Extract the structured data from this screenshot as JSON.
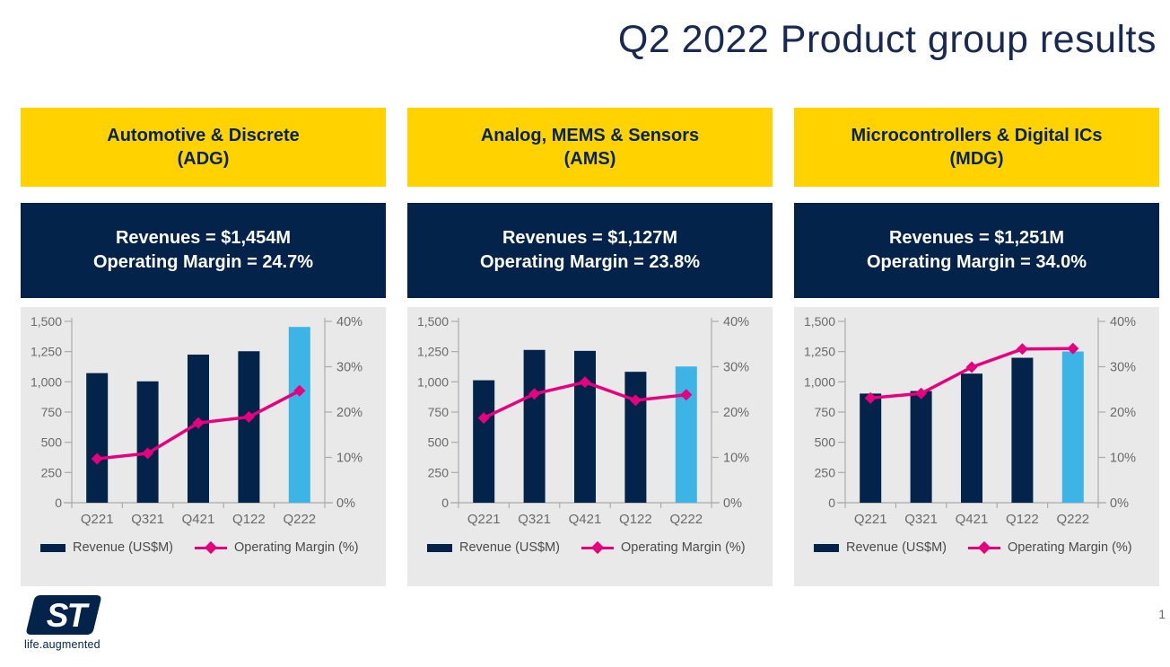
{
  "slide": {
    "title": "Q2 2022 Product group results",
    "page_number": "1",
    "logo_text": "ST",
    "logo_tagline": "life.augmented"
  },
  "colors": {
    "navy": "#03234B",
    "yellow": "#FFD200",
    "light_blue": "#3CB4E6",
    "pink": "#E6007E",
    "panel_bg": "#E9E9E9",
    "axis_line": "#ABABAB",
    "axis_text": "#6A6A6A",
    "legend_text": "#4A4A4A",
    "title_navy": "#182A54"
  },
  "legend": {
    "revenue_label": "Revenue (US$M)",
    "margin_label": "Operating Margin (%)"
  },
  "panels": [
    {
      "name_line": "Automotive & Discrete",
      "abbr_line": "(ADG)",
      "revenue_line": "Revenues = $1,454M",
      "margin_line": "Operating Margin = 24.7%"
    },
    {
      "name_line": "Analog, MEMS & Sensors",
      "abbr_line": "(AMS)",
      "revenue_line": "Revenues = $1,127M",
      "margin_line": "Operating Margin = 23.8%"
    },
    {
      "name_line": "Microcontrollers & Digital ICs",
      "abbr_line": "(MDG)",
      "revenue_line": "Revenues = $1,251M",
      "margin_line": "Operating Margin = 34.0%"
    }
  ],
  "chart_data": [
    {
      "type": "bar",
      "title": "Automotive & Discrete (ADG)",
      "categories": [
        "Q221",
        "Q321",
        "Q421",
        "Q122",
        "Q222"
      ],
      "series": [
        {
          "name": "Revenue (US$M)",
          "type": "bar",
          "axis": "left",
          "values": [
            1072,
            1004,
            1225,
            1253,
            1454
          ],
          "highlight_index": 4
        },
        {
          "name": "Operating Margin (%)",
          "type": "line",
          "axis": "right",
          "values": [
            9.7,
            10.9,
            17.6,
            18.9,
            24.7
          ]
        }
      ],
      "left_axis": {
        "range": [
          0,
          1500
        ],
        "ticks": [
          "0",
          "250",
          "500",
          "750",
          "1,000",
          "1,250",
          "1,500"
        ]
      },
      "right_axis": {
        "range": [
          0,
          40
        ],
        "ticks": [
          "0%",
          "10%",
          "20%",
          "30%",
          "40%"
        ]
      },
      "grid": false,
      "legend_position": "bottom"
    },
    {
      "type": "bar",
      "title": "Analog, MEMS & Sensors (AMS)",
      "categories": [
        "Q221",
        "Q321",
        "Q421",
        "Q122",
        "Q222"
      ],
      "series": [
        {
          "name": "Revenue (US$M)",
          "type": "bar",
          "axis": "left",
          "values": [
            1013,
            1264,
            1256,
            1083,
            1127
          ],
          "highlight_index": 4
        },
        {
          "name": "Operating Margin (%)",
          "type": "line",
          "axis": "right",
          "values": [
            18.7,
            24.0,
            26.6,
            22.6,
            23.8
          ]
        }
      ],
      "left_axis": {
        "range": [
          0,
          1500
        ],
        "ticks": [
          "0",
          "250",
          "500",
          "750",
          "1,000",
          "1,250",
          "1,500"
        ]
      },
      "right_axis": {
        "range": [
          0,
          40
        ],
        "ticks": [
          "0%",
          "10%",
          "20%",
          "30%",
          "40%"
        ]
      },
      "grid": false,
      "legend_position": "bottom"
    },
    {
      "type": "bar",
      "title": "Microcontrollers & Digital ICs (MDG)",
      "categories": [
        "Q221",
        "Q321",
        "Q421",
        "Q122",
        "Q222"
      ],
      "series": [
        {
          "name": "Revenue (US$M)",
          "type": "bar",
          "axis": "left",
          "values": [
            903,
            924,
            1068,
            1199,
            1251
          ],
          "highlight_index": 4
        },
        {
          "name": "Operating Margin (%)",
          "type": "line",
          "axis": "right",
          "values": [
            23.1,
            24.1,
            29.9,
            33.9,
            34.0
          ]
        }
      ],
      "left_axis": {
        "range": [
          0,
          1500
        ],
        "ticks": [
          "0",
          "250",
          "500",
          "750",
          "1,000",
          "1,250",
          "1,500"
        ]
      },
      "right_axis": {
        "range": [
          0,
          40
        ],
        "ticks": [
          "0%",
          "10%",
          "20%",
          "30%",
          "40%"
        ]
      },
      "grid": false,
      "legend_position": "bottom"
    }
  ]
}
